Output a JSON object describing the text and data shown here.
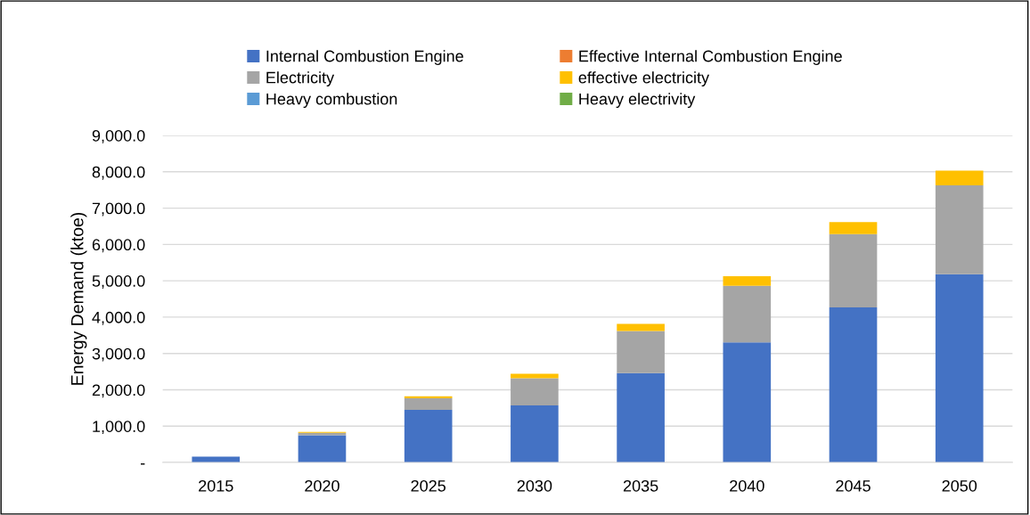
{
  "chart_data": {
    "type": "bar",
    "stacked": true,
    "ylabel": "Energy Demand (ktoe)",
    "categories": [
      "2015",
      "2020",
      "2025",
      "2030",
      "2035",
      "2040",
      "2045",
      "2050"
    ],
    "series": [
      {
        "name": "Internal Combustion Engine",
        "color": "#4472c4",
        "values": [
          160,
          750,
          1446,
          1569,
          2458,
          3306,
          4265,
          5179
        ]
      },
      {
        "name": "Effective Internal Combustion Engine",
        "color": "#ed7d31",
        "values": [
          0,
          0,
          0,
          0,
          0,
          0,
          0,
          0
        ]
      },
      {
        "name": "Electricity",
        "color": "#a5a5a5",
        "values": [
          0,
          66,
          319,
          750,
          1162,
          1559,
          2022,
          2451
        ]
      },
      {
        "name": "effective electricity",
        "color": "#ffc000",
        "values": [
          0,
          24,
          56,
          120,
          194,
          258,
          331,
          399
        ]
      },
      {
        "name": "Heavy combustion",
        "color": "#5b9bd5",
        "values": [
          0,
          0,
          0,
          0,
          0,
          0,
          0,
          0
        ]
      },
      {
        "name": "Heavy electrivity",
        "color": "#70ad47",
        "values": [
          0,
          0,
          0,
          0,
          0,
          0,
          0,
          0
        ]
      }
    ],
    "ylim": [
      0,
      9000
    ],
    "yticks": [
      {
        "value": 0,
        "label": "-"
      },
      {
        "value": 1000,
        "label": "1,000.0"
      },
      {
        "value": 2000,
        "label": "2,000.0"
      },
      {
        "value": 3000,
        "label": "3,000.0"
      },
      {
        "value": 4000,
        "label": "4,000.0"
      },
      {
        "value": 5000,
        "label": "5,000.0"
      },
      {
        "value": 6000,
        "label": "6,000.0"
      },
      {
        "value": 7000,
        "label": "7,000.0"
      },
      {
        "value": 8000,
        "label": "8,000.0"
      },
      {
        "value": 9000,
        "label": "9,000.0"
      }
    ],
    "grid": "y",
    "legend": "top"
  }
}
